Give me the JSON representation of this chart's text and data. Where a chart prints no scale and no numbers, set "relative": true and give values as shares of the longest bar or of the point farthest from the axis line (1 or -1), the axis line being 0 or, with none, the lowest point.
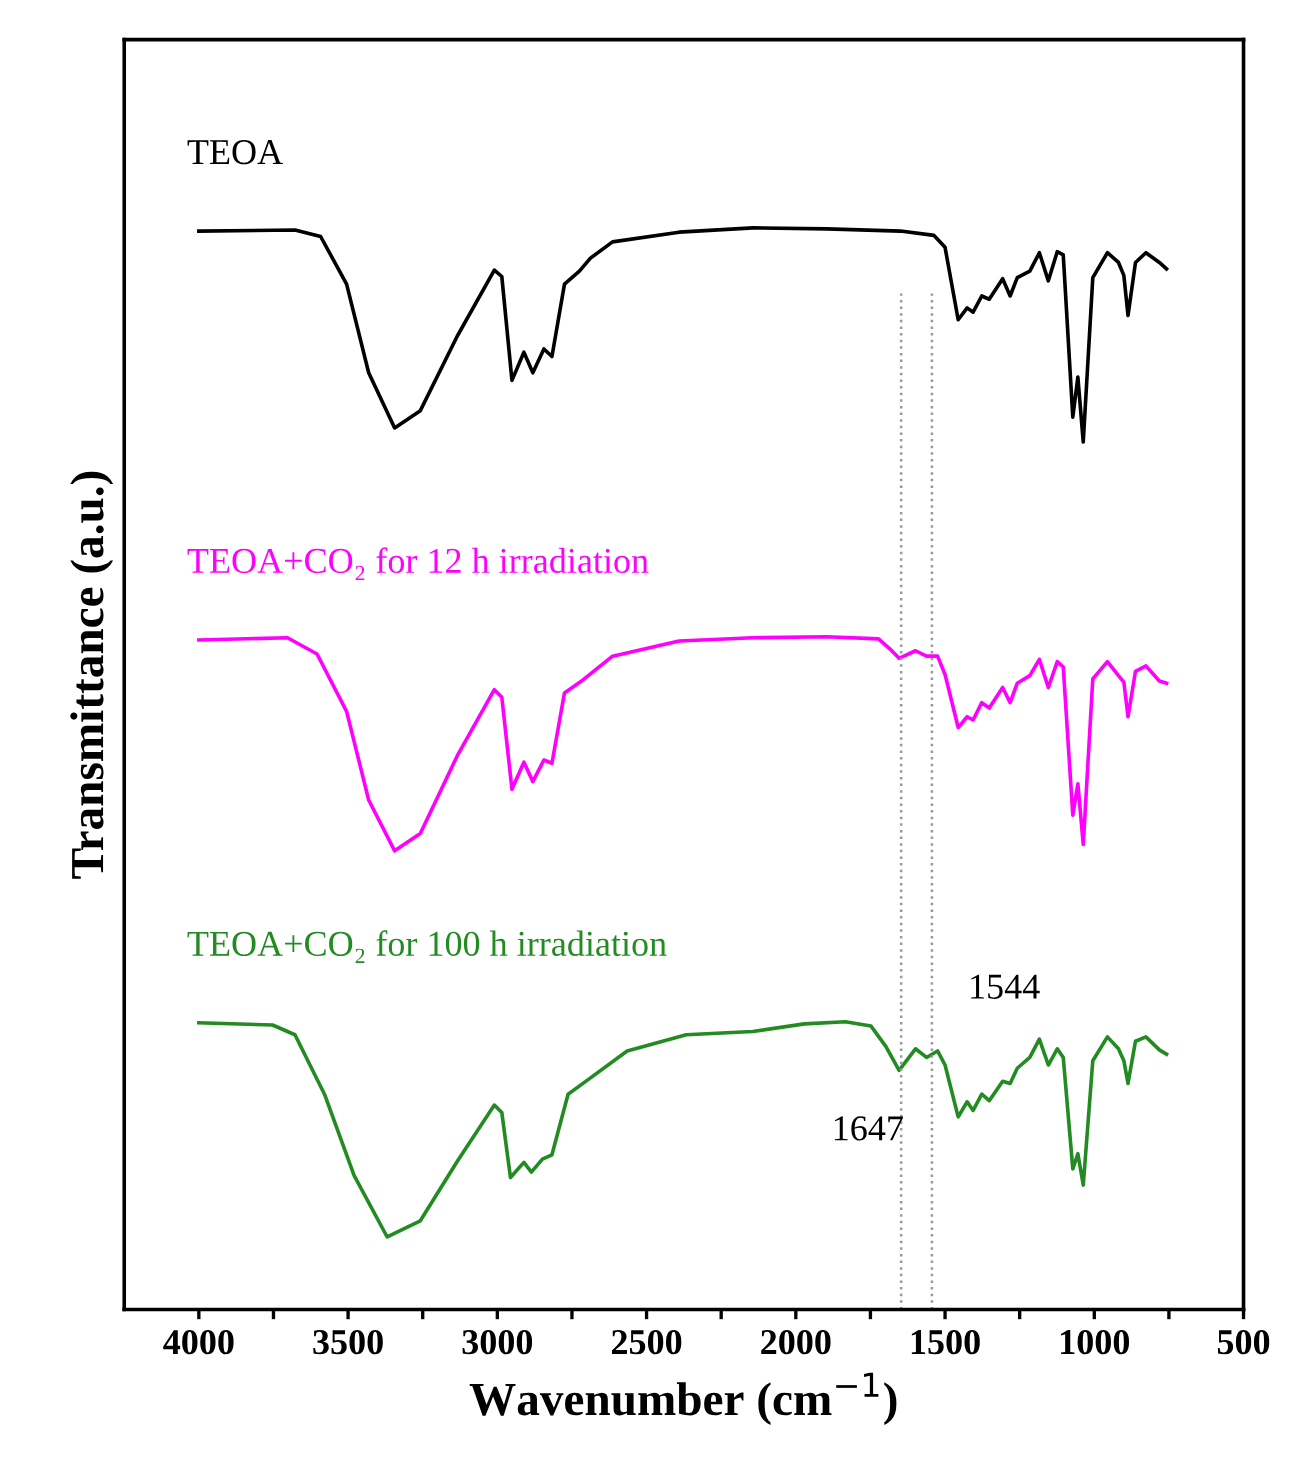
{
  "chart_data": {
    "type": "line",
    "relative": true,
    "xlabel": "Wavenumber (cm$^{−1}$)",
    "ylabel": "Transmittance (a.u.)",
    "xlim": [
      4250,
      500
    ],
    "xticks": [
      4000,
      {
        "value": 3750,
        "label": null
      },
      3500,
      {
        "value": 3250,
        "label": null
      },
      3000,
      {
        "value": 2750,
        "label": null
      },
      2500,
      {
        "value": 2250,
        "label": null
      },
      2000,
      {
        "value": 1750,
        "label": null
      },
      1500,
      {
        "value": 1250,
        "label": null
      },
      1000,
      {
        "value": 750,
        "label": null
      },
      500
    ],
    "tick_labels": "x",
    "grid": false,
    "legend": false,
    "marker": "none",
    "line_style": "solid",
    "ref_lines": [
      {
        "axis": "x",
        "value": 1647,
        "color": "#999999",
        "line_style": "dotted"
      },
      {
        "axis": "x",
        "value": 1544,
        "color": "#999999",
        "line_style": "dotted"
      }
    ],
    "annotations": [
      {
        "text": "1647",
        "x": 1647,
        "y": 0.221
      },
      {
        "text": "1544",
        "x": 1544,
        "y": 0.239
      }
    ],
    "series": [
      {
        "name": "TEOA",
        "color": "#000000",
        "x": [
          4000,
          3678,
          3592,
          3505,
          3431,
          3344,
          3258,
          3134,
          3010,
          2985,
          2951,
          2911,
          2881,
          2844,
          2817,
          2775,
          2725,
          2688,
          2614,
          2391,
          2144,
          1896,
          1649,
          1537,
          1500,
          1456,
          1426,
          1406,
          1377,
          1352,
          1307,
          1282,
          1258,
          1216,
          1184,
          1154,
          1124,
          1104,
          1072,
          1055,
          1037,
          1005,
          956,
          919,
          901,
          887,
          862,
          827,
          782,
          758
        ],
        "values": [
          0.997,
          0.998,
          0.992,
          0.948,
          0.866,
          0.815,
          0.831,
          0.9,
          0.961,
          0.955,
          0.859,
          0.885,
          0.866,
          0.888,
          0.881,
          0.948,
          0.96,
          0.972,
          0.987,
          0.996,
          1.0,
          0.999,
          0.997,
          0.993,
          0.982,
          0.915,
          0.926,
          0.922,
          0.937,
          0.934,
          0.953,
          0.937,
          0.954,
          0.96,
          0.977,
          0.951,
          0.978,
          0.975,
          0.825,
          0.862,
          0.802,
          0.954,
          0.977,
          0.968,
          0.956,
          0.919,
          0.968,
          0.977,
          0.968,
          0.962
        ]
      },
      {
        "name": "TEOA+CO₂ for 12 h irradiation",
        "color": "#ff00ff",
        "x": [
          4000,
          3703,
          3604,
          3505,
          3431,
          3344,
          3258,
          3134,
          3010,
          2985,
          2951,
          2911,
          2881,
          2844,
          2817,
          2775,
          2713,
          2614,
          2391,
          2144,
          1896,
          1723,
          1686,
          1654,
          1599,
          1562,
          1525,
          1500,
          1456,
          1426,
          1406,
          1377,
          1352,
          1307,
          1282,
          1258,
          1216,
          1184,
          1154,
          1124,
          1104,
          1072,
          1055,
          1037,
          1005,
          956,
          919,
          901,
          887,
          862,
          827,
          782,
          758
        ],
        "values": [
          0.619,
          0.621,
          0.606,
          0.553,
          0.471,
          0.424,
          0.44,
          0.512,
          0.573,
          0.566,
          0.481,
          0.506,
          0.488,
          0.508,
          0.505,
          0.57,
          0.582,
          0.604,
          0.618,
          0.621,
          0.622,
          0.62,
          0.611,
          0.602,
          0.609,
          0.604,
          0.604,
          0.587,
          0.538,
          0.548,
          0.545,
          0.561,
          0.556,
          0.575,
          0.561,
          0.579,
          0.586,
          0.601,
          0.575,
          0.599,
          0.594,
          0.457,
          0.486,
          0.43,
          0.583,
          0.599,
          0.586,
          0.58,
          0.548,
          0.59,
          0.595,
          0.581,
          0.579
        ]
      },
      {
        "name": "TEOA+CO₂ for 100 h irradiation",
        "color": "#228b22",
        "x": [
          4000,
          3753,
          3678,
          3579,
          3480,
          3369,
          3258,
          3134,
          3010,
          2985,
          2956,
          2911,
          2886,
          2849,
          2817,
          2763,
          2713,
          2565,
          2367,
          2144,
          1971,
          1834,
          1748,
          1698,
          1654,
          1599,
          1562,
          1525,
          1500,
          1456,
          1426,
          1406,
          1377,
          1352,
          1307,
          1282,
          1258,
          1216,
          1184,
          1154,
          1124,
          1104,
          1072,
          1055,
          1037,
          1005,
          956,
          919,
          901,
          887,
          862,
          827,
          782,
          758
        ],
        "values": [
          0.265,
          0.263,
          0.254,
          0.199,
          0.124,
          0.067,
          0.082,
          0.137,
          0.189,
          0.182,
          0.122,
          0.136,
          0.127,
          0.139,
          0.143,
          0.199,
          0.209,
          0.239,
          0.254,
          0.257,
          0.264,
          0.266,
          0.262,
          0.243,
          0.221,
          0.241,
          0.233,
          0.239,
          0.226,
          0.178,
          0.192,
          0.184,
          0.199,
          0.193,
          0.211,
          0.209,
          0.223,
          0.233,
          0.25,
          0.226,
          0.241,
          0.233,
          0.13,
          0.144,
          0.115,
          0.23,
          0.252,
          0.241,
          0.23,
          0.209,
          0.248,
          0.252,
          0.24,
          0.236
        ]
      }
    ]
  }
}
